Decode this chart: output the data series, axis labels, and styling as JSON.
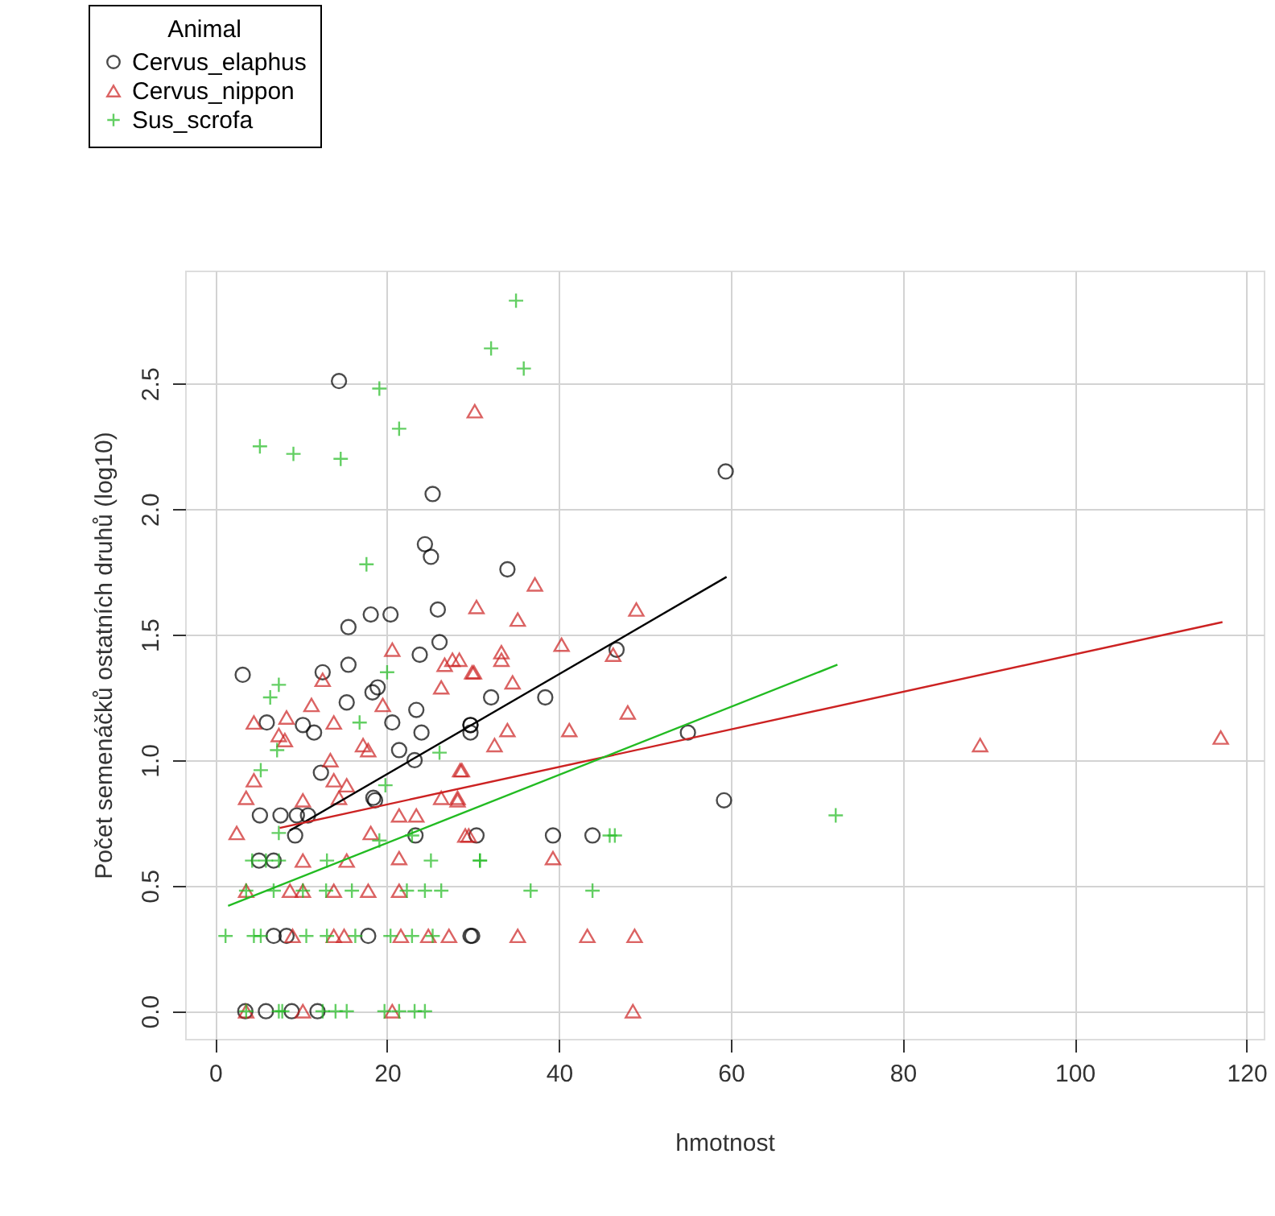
{
  "chart_data": {
    "type": "scatter",
    "xlabel": "hmotnost",
    "ylabel": "Počet semenáčků ostatních druhů (log10)",
    "legend_title": "Animal",
    "legend": "top left",
    "grid": true,
    "xlim": [
      -3.5,
      122
    ],
    "ylim": [
      -0.11,
      2.95
    ],
    "xticks": [
      0,
      20,
      40,
      60,
      80,
      100,
      120
    ],
    "yticks": [
      {
        "value": 0,
        "label": "0.0"
      },
      {
        "value": 0.5,
        "label": "0.5"
      },
      {
        "value": 1,
        "label": "1.0"
      },
      {
        "value": 1.5,
        "label": "1.5"
      },
      {
        "value": 2,
        "label": "2.0"
      },
      {
        "value": 2.5,
        "label": "2.5"
      }
    ],
    "series": [
      {
        "name": "Cervus_elaphus",
        "marker": "circle",
        "color": "#000000",
        "x": [
          3.2,
          12.5,
          15.5,
          18.3,
          18.9,
          15.3,
          23.4,
          20.6,
          24.0,
          11.5,
          10.2,
          6.0,
          21.4,
          23.2,
          12.3,
          18.4,
          18.6,
          5.2,
          7.6,
          9.5,
          10.8,
          9.3,
          5.1,
          6.8,
          23.3,
          29.9,
          17.8,
          6.8,
          8.3,
          3.5,
          5.9,
          8.9,
          11.9,
          29.7,
          59.4,
          34.0,
          46.7,
          32.1,
          38.4,
          29.7,
          29.7,
          55.0,
          59.2,
          30.4,
          39.3,
          43.9,
          29.7,
          14.4,
          25.3,
          24.4,
          25.1,
          18.1,
          15.5,
          20.4,
          25.9,
          26.1,
          23.8
        ],
        "values": [
          1.34,
          1.35,
          1.38,
          1.27,
          1.29,
          1.23,
          1.2,
          1.15,
          1.11,
          1.11,
          1.14,
          1.15,
          1.04,
          1.0,
          0.95,
          0.85,
          0.84,
          0.78,
          0.78,
          0.78,
          0.78,
          0.7,
          0.6,
          0.6,
          0.7,
          0.3,
          0.3,
          0.3,
          0.3,
          0,
          0,
          0,
          0,
          1.14,
          2.15,
          1.76,
          1.44,
          1.25,
          1.25,
          1.14,
          1.11,
          1.11,
          0.84,
          0.7,
          0.7,
          0.7,
          0.3,
          2.51,
          2.06,
          1.86,
          1.81,
          1.58,
          1.53,
          1.58,
          1.6,
          1.47,
          1.42
        ]
      },
      {
        "name": "Cervus_nippon",
        "marker": "triangle",
        "color": "#cc2222",
        "x": [
          30.2,
          37.2,
          30.4,
          35.2,
          49.0,
          40.3,
          33.3,
          33.3,
          28.4,
          30.1,
          34.6,
          46.3,
          34.0,
          41.2,
          48.0,
          32.5,
          28.7,
          28.2,
          89.0,
          117.0,
          29.5,
          39.3,
          35.2,
          43.3,
          48.8,
          48.6,
          20.6,
          26.7,
          27.6,
          26.3,
          29.9,
          12.5,
          8.3,
          4.5,
          11.2,
          13.8,
          19.5,
          7.4,
          8.1,
          17.2,
          17.8,
          13.4,
          28.5,
          4.5,
          13.8,
          15.3,
          3.6,
          10.2,
          14.4,
          26.3,
          28.2,
          21.4,
          23.4,
          2.5,
          18.1,
          29.1,
          10.2,
          15.3,
          21.4,
          3.6,
          8.7,
          10.2,
          13.8,
          17.8,
          21.4,
          9.0,
          13.8,
          15.0,
          21.6,
          24.8,
          27.2,
          3.6,
          10.2,
          20.6
        ],
        "values": [
          2.39,
          1.7,
          1.61,
          1.56,
          1.6,
          1.46,
          1.43,
          1.4,
          1.4,
          1.35,
          1.31,
          1.42,
          1.12,
          1.12,
          1.19,
          1.06,
          0.96,
          0.85,
          1.06,
          1.09,
          0.7,
          0.61,
          0.3,
          0.3,
          0.3,
          0,
          1.44,
          1.38,
          1.4,
          1.29,
          1.35,
          1.32,
          1.17,
          1.15,
          1.22,
          1.15,
          1.22,
          1.1,
          1.08,
          1.06,
          1.04,
          1.0,
          0.96,
          0.92,
          0.92,
          0.9,
          0.85,
          0.84,
          0.85,
          0.85,
          0.84,
          0.78,
          0.78,
          0.71,
          0.71,
          0.7,
          0.6,
          0.6,
          0.61,
          0.48,
          0.48,
          0.48,
          0.48,
          0.48,
          0.48,
          0.3,
          0.3,
          0.3,
          0.3,
          0.3,
          0.3,
          0,
          0,
          0
        ]
      },
      {
        "name": "Sus_scrofa",
        "marker": "cross",
        "color": "#22bb22",
        "x": [
          19.1,
          21.4,
          5.2,
          9.1,
          14.6,
          17.6,
          35.0,
          32.1,
          35.9,
          72.2,
          45.9,
          46.5,
          30.8,
          36.7,
          43.9,
          7.4,
          6.4,
          20.0,
          16.8,
          7.2,
          5.3,
          19.8,
          26.1,
          4.3,
          5.9,
          7.4,
          13.0,
          25.1,
          30.8,
          7.4,
          19.1,
          22.9,
          3.6,
          6.8,
          10.2,
          12.9,
          15.9,
          22.3,
          24.4,
          26.3,
          1.2,
          4.5,
          5.3,
          10.6,
          13.0,
          16.3,
          20.4,
          22.9,
          25.3,
          3.6,
          7.4,
          7.8,
          12.5,
          14.0,
          15.3,
          19.7,
          21.4,
          23.2,
          24.4
        ],
        "values": [
          2.48,
          2.32,
          2.25,
          2.22,
          2.2,
          1.78,
          2.83,
          2.64,
          2.56,
          0.78,
          0.7,
          0.7,
          0.6,
          0.48,
          0.48,
          1.3,
          1.25,
          1.35,
          1.15,
          1.04,
          0.96,
          0.9,
          1.03,
          0.6,
          0.6,
          0.6,
          0.6,
          0.6,
          0.6,
          0.71,
          0.68,
          0.7,
          0.48,
          0.48,
          0.48,
          0.48,
          0.48,
          0.48,
          0.48,
          0.48,
          0.3,
          0.3,
          0.3,
          0.3,
          0.3,
          0.3,
          0.3,
          0.3,
          0.3,
          0,
          0,
          0,
          0,
          0,
          0,
          0,
          0,
          0,
          0
        ]
      },
      {
        "type": "line",
        "color": "#000000",
        "x": [
          8.7,
          59.5
        ],
        "values": [
          0.72,
          1.73
        ]
      },
      {
        "type": "line",
        "color": "#cc2222",
        "x": [
          7.5,
          117.2
        ],
        "values": [
          0.73,
          1.55
        ]
      },
      {
        "type": "line",
        "color": "#22bb22",
        "x": [
          1.5,
          72.4
        ],
        "values": [
          0.42,
          1.38
        ]
      }
    ]
  }
}
